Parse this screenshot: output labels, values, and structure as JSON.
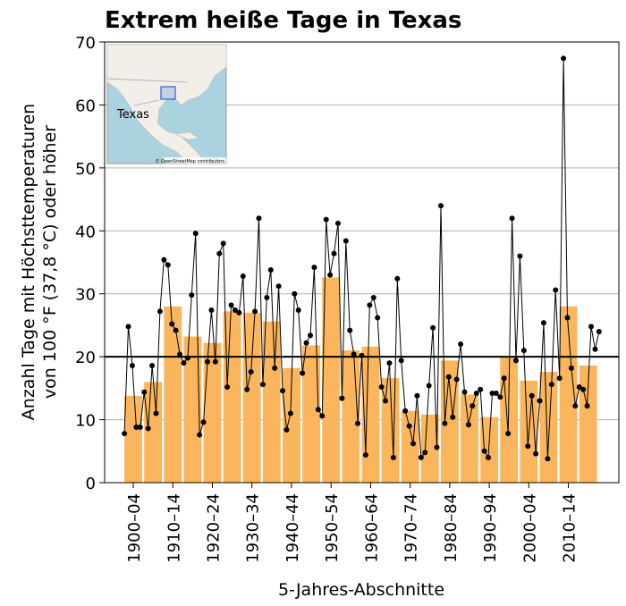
{
  "chart_data": {
    "type": "bar+line",
    "title": "Extrem heiße Tage in Texas",
    "xlabel": "5-Jahres-Abschnitte",
    "ylabel": [
      "Anzahl Tage mit Höchsttemperaturen",
      "von 100 °F (37,8 °C) oder höher"
    ],
    "ylim": [
      0,
      70
    ],
    "yticks": [
      0,
      10,
      20,
      30,
      40,
      50,
      60,
      70
    ],
    "xlim": [
      1895,
      2025
    ],
    "grid": true,
    "reference_line": 20,
    "categories": [
      "1900–04",
      null,
      "1910–14",
      null,
      "1920–24",
      null,
      "1930–34",
      null,
      "1940–44",
      null,
      "1950–54",
      null,
      "1960–64",
      null,
      "1970–74",
      null,
      "1980–84",
      null,
      "1990–94",
      null,
      "2000–04",
      null,
      "2010–14",
      null
    ],
    "bars": {
      "color": "#fbb55c",
      "values": [
        13.8,
        16.0,
        28.0,
        23.2,
        22.2,
        27.2,
        27.0,
        25.6,
        18.2,
        21.8,
        32.6,
        21.0,
        21.6,
        16.6,
        11.4,
        10.8,
        19.4,
        14.0,
        10.4,
        20.0,
        16.2,
        17.6,
        28.0,
        18.6
      ]
    },
    "line": {
      "color": "#000000",
      "x": [
        1900,
        1901,
        1902,
        1903,
        1904,
        1905,
        1906,
        1907,
        1908,
        1909,
        1910,
        1911,
        1912,
        1913,
        1914,
        1915,
        1916,
        1917,
        1918,
        1919,
        1920,
        1921,
        1922,
        1923,
        1924,
        1925,
        1926,
        1927,
        1928,
        1929,
        1930,
        1931,
        1932,
        1933,
        1934,
        1935,
        1936,
        1937,
        1938,
        1939,
        1940,
        1941,
        1942,
        1943,
        1944,
        1945,
        1946,
        1947,
        1948,
        1949,
        1950,
        1951,
        1952,
        1953,
        1954,
        1955,
        1956,
        1957,
        1958,
        1959,
        1960,
        1961,
        1962,
        1963,
        1964,
        1965,
        1966,
        1967,
        1968,
        1969,
        1970,
        1971,
        1972,
        1973,
        1974,
        1975,
        1976,
        1977,
        1978,
        1979,
        1980,
        1981,
        1982,
        1983,
        1984,
        1985,
        1986,
        1987,
        1988,
        1989,
        1990,
        1991,
        1992,
        1993,
        1994,
        1995,
        1996,
        1997,
        1998,
        1999,
        2000,
        2001,
        2002,
        2003,
        2004,
        2005,
        2006,
        2007,
        2008,
        2009,
        2010,
        2011,
        2012,
        2013,
        2014,
        2015,
        2016,
        2017,
        2018,
        2019,
        2020
      ],
      "values": [
        7.8,
        24.8,
        18.6,
        8.8,
        8.8,
        14.4,
        8.6,
        18.6,
        11.0,
        27.2,
        35.4,
        34.6,
        25.2,
        24.2,
        20.4,
        19.0,
        19.8,
        29.8,
        39.6,
        7.6,
        9.6,
        19.2,
        27.4,
        19.2,
        36.4,
        38.0,
        15.2,
        28.2,
        27.4,
        27.0,
        32.8,
        14.8,
        17.6,
        27.2,
        42.0,
        15.6,
        29.4,
        33.8,
        18.2,
        31.2,
        14.6,
        8.4,
        11.0,
        30.0,
        27.4,
        17.4,
        22.2,
        23.4,
        34.2,
        11.6,
        10.6,
        41.8,
        33.0,
        36.4,
        41.2,
        13.4,
        38.4,
        24.2,
        20.4,
        9.4,
        20.2,
        4.4,
        28.2,
        29.4,
        26.2,
        15.2,
        13.0,
        19.0,
        4.0,
        32.4,
        19.4,
        11.4,
        9.0,
        6.2,
        13.8,
        4.0,
        4.8,
        15.4,
        24.6,
        5.6,
        44.0,
        9.4,
        16.8,
        10.4,
        16.4,
        22.0,
        14.4,
        9.2,
        12.2,
        14.2,
        14.8,
        5.0,
        4.0,
        14.2,
        14.2,
        13.6,
        16.6,
        7.8,
        42.0,
        19.4,
        36.0,
        21.0,
        5.8,
        13.8,
        4.6,
        13.0,
        25.4,
        3.8,
        15.6,
        30.6,
        16.6,
        67.4,
        26.2,
        18.2,
        12.2,
        15.2,
        14.8,
        12.2,
        24.8,
        21.2,
        24.0
      ]
    },
    "inset": {
      "label": "Texas",
      "attribution": "© OpenStreetMap contributors"
    }
  }
}
